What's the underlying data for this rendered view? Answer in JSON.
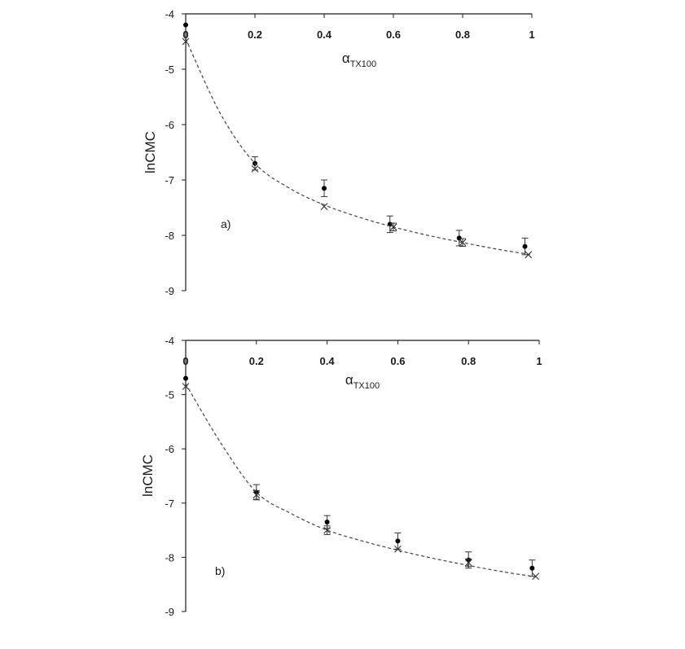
{
  "chart_data": [
    {
      "type": "scatter",
      "panel_label": "a)",
      "xlabel": "α",
      "xlabel_sub": "TX100",
      "ylabel": "lnCMC",
      "xlim": [
        0,
        1
      ],
      "ylim": [
        -9,
        -4
      ],
      "x_ticks": [
        "0",
        "0.2",
        "0.4",
        "0.6",
        "0.8",
        "1"
      ],
      "y_ticks": [
        "-4",
        "-5",
        "-6",
        "-7",
        "-8",
        "-9"
      ],
      "x_axis_position": "top",
      "grid": false,
      "series": [
        {
          "marker": "dot",
          "x": [
            0,
            0.2,
            0.4,
            0.59,
            0.79,
            0.98
          ],
          "y": [
            -4.2,
            -6.7,
            -7.15,
            -7.8,
            -8.05,
            -8.2
          ],
          "error": [
            0,
            0.12,
            0.15,
            0.15,
            0.14,
            0.15
          ]
        },
        {
          "marker": "cross",
          "x": [
            0,
            0.2,
            0.4,
            0.6,
            0.8,
            0.99
          ],
          "y": [
            -4.5,
            -6.8,
            -7.48,
            -7.85,
            -8.13,
            -8.35
          ],
          "error": [
            0,
            0,
            0,
            0.07,
            0.07,
            0
          ]
        },
        {
          "style": "dashed-line",
          "x": [
            0,
            0.1,
            0.2,
            0.3,
            0.4,
            0.5,
            0.6,
            0.7,
            0.8,
            0.9,
            1.0
          ],
          "y": [
            -4.45,
            -5.8,
            -6.7,
            -7.15,
            -7.45,
            -7.67,
            -7.85,
            -8.0,
            -8.13,
            -8.25,
            -8.35
          ]
        }
      ]
    },
    {
      "type": "scatter",
      "panel_label": "b)",
      "xlabel": "α",
      "xlabel_sub": "TX100",
      "ylabel": "lnCMC",
      "xlim": [
        0,
        1
      ],
      "ylim": [
        -9,
        -4
      ],
      "x_ticks": [
        "0",
        "0.2",
        "0.4",
        "0.6",
        "0.8",
        "1"
      ],
      "y_ticks": [
        "-4",
        "-5",
        "-6",
        "-7",
        "-8",
        "-9"
      ],
      "x_axis_position": "top",
      "grid": false,
      "series": [
        {
          "marker": "dot",
          "x": [
            0,
            0.2,
            0.4,
            0.6,
            0.8,
            0.98
          ],
          "y": [
            -4.7,
            -6.8,
            -7.35,
            -7.7,
            -8.05,
            -8.2
          ],
          "error": [
            0,
            0.14,
            0.12,
            0.15,
            0.15,
            0.15
          ]
        },
        {
          "marker": "cross",
          "x": [
            0,
            0.2,
            0.4,
            0.6,
            0.8,
            0.99
          ],
          "y": [
            -4.85,
            -6.85,
            -7.5,
            -7.85,
            -8.1,
            -8.35
          ],
          "error": [
            0,
            0.08,
            0.08,
            0,
            0.07,
            0
          ]
        },
        {
          "style": "dashed-line",
          "x": [
            0,
            0.1,
            0.2,
            0.3,
            0.4,
            0.5,
            0.6,
            0.7,
            0.8,
            0.9,
            1.0
          ],
          "y": [
            -4.8,
            -5.9,
            -6.8,
            -7.2,
            -7.5,
            -7.7,
            -7.87,
            -8.02,
            -8.15,
            -8.27,
            -8.37
          ]
        }
      ]
    }
  ]
}
